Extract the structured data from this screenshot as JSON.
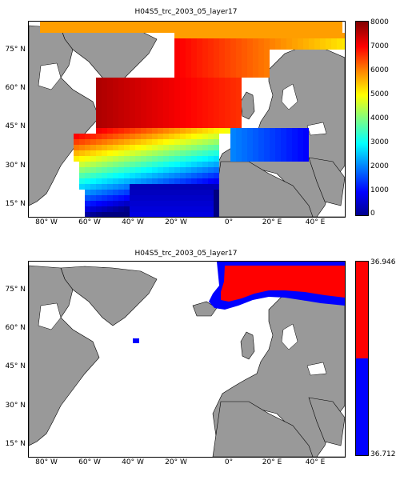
{
  "panels": [
    {
      "title": "H04S5_trc_2003_05_layer17",
      "y_ticks": [
        "75° N",
        "60° N",
        "45° N",
        "30° N",
        "15° N"
      ],
      "x_ticks": [
        "80° W",
        "60° W",
        "40° W",
        "20° W",
        "0°",
        "20° E",
        "40° E"
      ],
      "colorbar": {
        "type": "continuous",
        "range": [
          0,
          8000
        ],
        "ticks": [
          "8000",
          "7000",
          "6000",
          "5000",
          "4000",
          "3000",
          "2000",
          "1000",
          "0"
        ],
        "colormap": "jet"
      }
    },
    {
      "title": "H04S5_trc_2003_05_layer17",
      "y_ticks": [
        "75° N",
        "60° N",
        "45° N",
        "30° N",
        "15° N"
      ],
      "x_ticks": [
        "80° W",
        "60° W",
        "40° W",
        "20° W",
        "0°",
        "20° E",
        "40° E"
      ],
      "colorbar": {
        "type": "binary",
        "ticks": [
          "36.946",
          "36.712"
        ],
        "colors": [
          "#ff0000",
          "#0000ff"
        ]
      }
    }
  ],
  "colors": {
    "land": "#999999",
    "ocean_no_data": "#ffffff",
    "coast": "#000000"
  }
}
